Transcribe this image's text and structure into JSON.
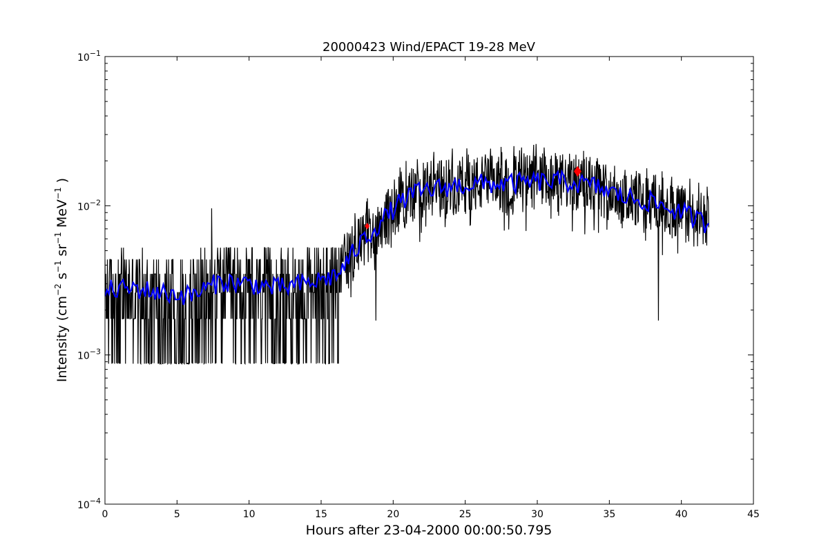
{
  "chart_data": {
    "type": "line",
    "title": "20000423 Wind/EPACT 19-28 MeV",
    "xlabel": "Hours after 23-04-2000 00:00:50.795",
    "ylabel": {
      "prefix": "Intensity (cm",
      "e1": "−2",
      "s": " s",
      "e2": "−1",
      "sr": " sr",
      "e3": "−1",
      "mev": " MeV",
      "e4": "−1",
      "suffix": " )"
    },
    "xlim": [
      0,
      45
    ],
    "ylim": [
      0.0001,
      0.1
    ],
    "yscale": "log",
    "grid": false,
    "xticks": [
      0,
      5,
      10,
      15,
      20,
      25,
      30,
      35,
      40,
      45
    ],
    "yticks": [
      {
        "value": 0.0001,
        "base": "10",
        "exp": "−4"
      },
      {
        "value": 0.001,
        "base": "10",
        "exp": "−3"
      },
      {
        "value": 0.01,
        "base": "10",
        "exp": "−2"
      },
      {
        "value": 0.1,
        "base": "10",
        "exp": "−1"
      }
    ],
    "series": [
      {
        "color": "#000000",
        "style": "noisy raw intensity",
        "x_range": [
          0,
          41.9
        ],
        "envelope": {
          "x": [
            0,
            2,
            4,
            6,
            8,
            10,
            12,
            14,
            16,
            16.5,
            17,
            18,
            19,
            20,
            21,
            22,
            24,
            26,
            28,
            30,
            32,
            34,
            36,
            38,
            40,
            41.9
          ],
          "y": [
            0.0027,
            0.0028,
            0.0026,
            0.0025,
            0.0031,
            0.003,
            0.0028,
            0.003,
            0.0034,
            0.0038,
            0.0045,
            0.006,
            0.0075,
            0.0095,
            0.0115,
            0.0125,
            0.0135,
            0.014,
            0.014,
            0.0145,
            0.0145,
            0.0135,
            0.0115,
            0.0105,
            0.009,
            0.0075
          ]
        },
        "floor_level": 0.00088,
        "floor_until_x": 16.4,
        "spikes": [
          {
            "x": 7.4,
            "y": 0.0096
          },
          {
            "x": 38.4,
            "y": 0.0017
          },
          {
            "x": 18.8,
            "y": 0.0017
          }
        ]
      },
      {
        "color": "#0000ff",
        "style": "smoothed intensity",
        "x_range": [
          0,
          41.9
        ],
        "envelope_ref": 0
      }
    ],
    "markers": [
      {
        "x": 18.2,
        "y": 0.0073,
        "color": "#ff0000",
        "shape": "diamond",
        "size": "small"
      },
      {
        "x": 32.8,
        "y": 0.017,
        "color": "#ff0000",
        "shape": "diamond",
        "size": "large"
      }
    ]
  }
}
